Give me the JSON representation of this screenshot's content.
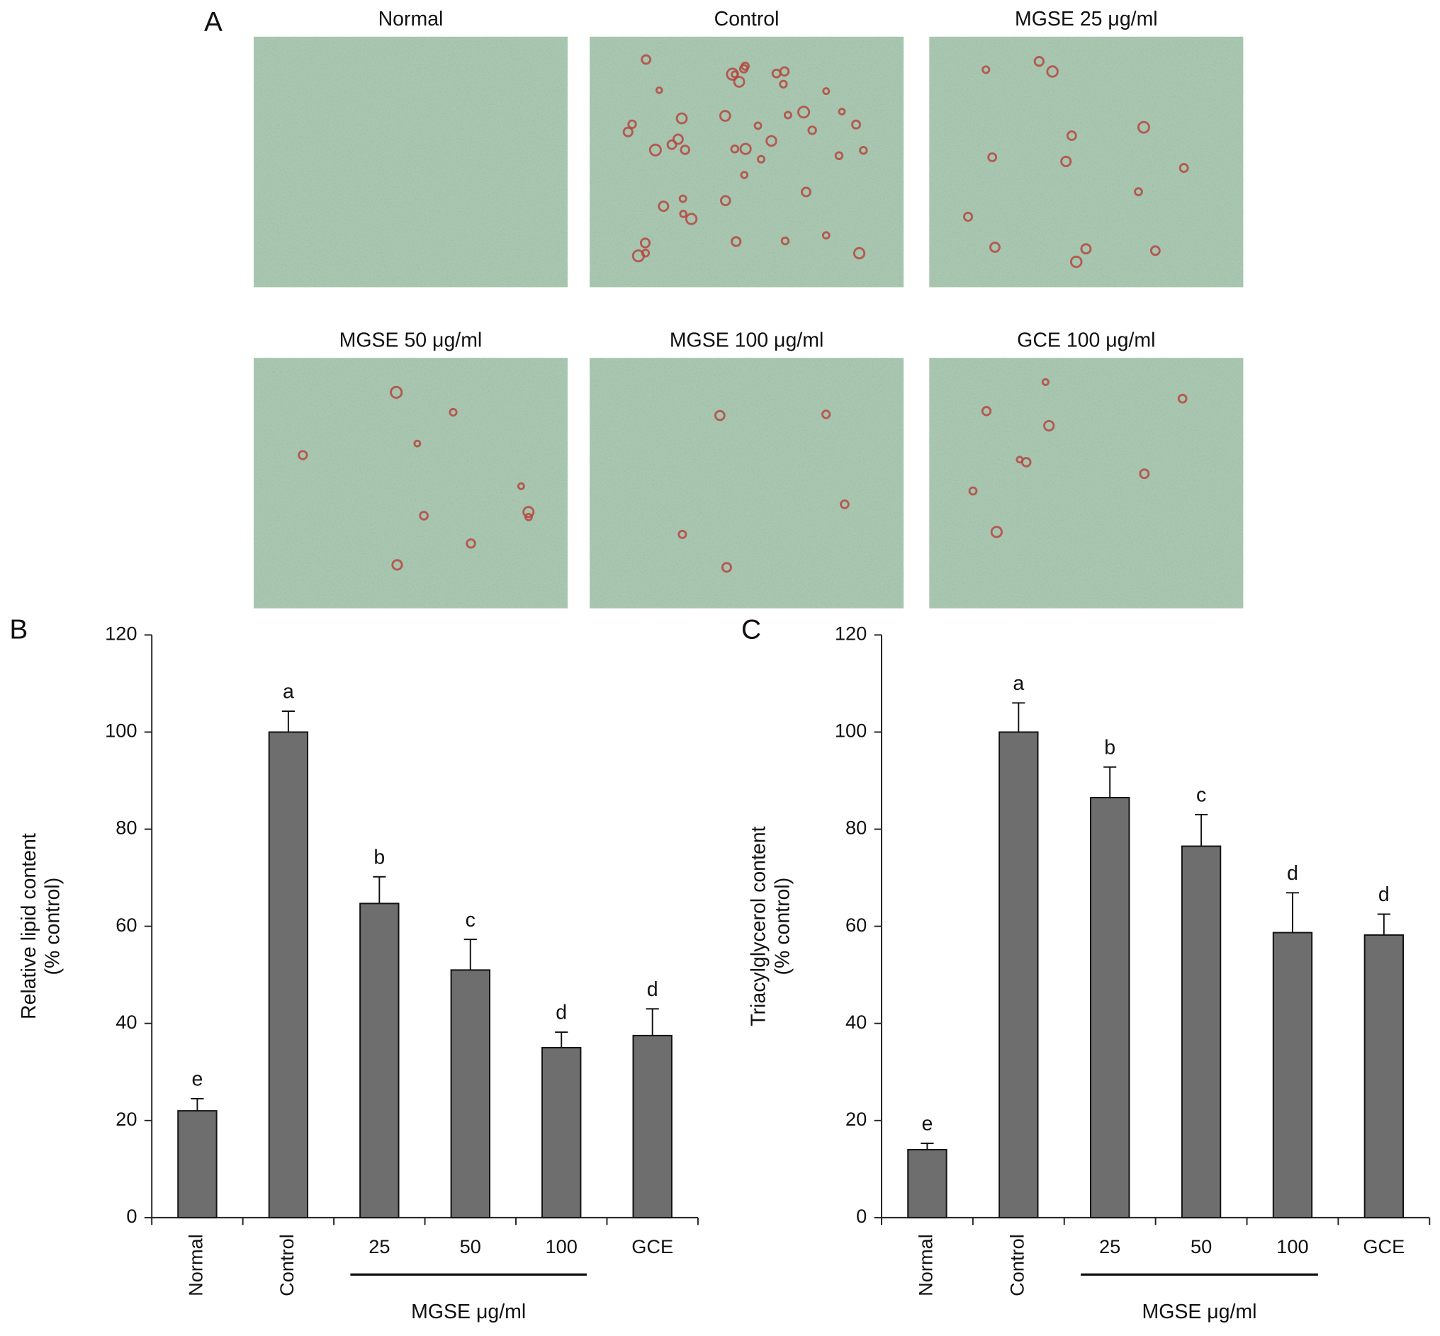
{
  "panel_a": {
    "label": "A",
    "images": [
      "Normal",
      "Control",
      "MGSE 25 μg/ml",
      "MGSE 50 μg/ml",
      "MGSE 100 μg/ml",
      "GCE 100 μg/ml"
    ]
  },
  "chart_data": [
    {
      "type": "bar",
      "panel": "B",
      "y_label": [
        "Relative lipid content",
        "(% control)"
      ],
      "categories": [
        "Normal",
        "Control",
        "25",
        "50",
        "100",
        "GCE"
      ],
      "group_label": "MGSE μg/ml",
      "series": [
        {
          "color": "#6e6e6e",
          "values": [
            22,
            100,
            64.7,
            51,
            35,
            37.5
          ],
          "errors": [
            2.5,
            4.3,
            5.5,
            6.3,
            3.2,
            5.5
          ],
          "annotations": [
            "e",
            "a",
            "b",
            "c",
            "d",
            "d"
          ]
        }
      ],
      "ylim": [
        0,
        120
      ],
      "yticks": [
        0,
        20,
        40,
        60,
        80,
        100,
        120
      ]
    },
    {
      "type": "bar",
      "panel": "C",
      "y_label": [
        "Triacylglycerol content",
        "(% control)"
      ],
      "categories": [
        "Normal",
        "Control",
        "25",
        "50",
        "100",
        "GCE"
      ],
      "group_label": "MGSE μg/ml",
      "series": [
        {
          "color": "#6e6e6e",
          "values": [
            14,
            100,
            86.5,
            76.5,
            58.7,
            58.2
          ],
          "errors": [
            1.3,
            6,
            6.3,
            6.5,
            8.2,
            4.3
          ],
          "annotations": [
            "e",
            "a",
            "b",
            "c",
            "d",
            "d"
          ]
        }
      ],
      "ylim": [
        0,
        120
      ],
      "yticks": [
        0,
        20,
        40,
        60,
        80,
        100,
        120
      ]
    }
  ]
}
